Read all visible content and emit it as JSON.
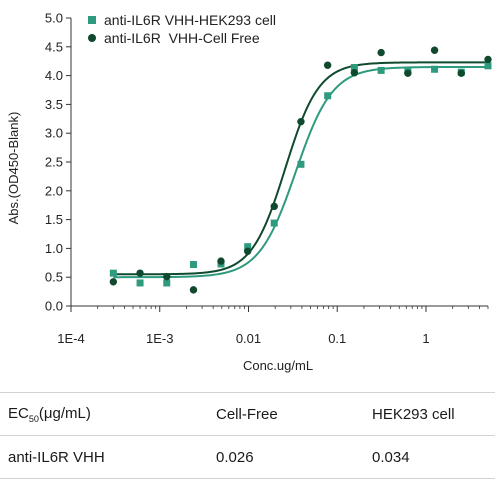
{
  "chart_data": {
    "type": "scatter",
    "xlabel": "Conc.ug/mL",
    "ylabel": "Abs.(OD450-Blank)",
    "x_scale": "log",
    "xlim": [
      0.0001,
      5
    ],
    "ylim": [
      0,
      5.0
    ],
    "x_ticks": [
      0.0001,
      0.001,
      0.01,
      0.1,
      1
    ],
    "x_tick_labels": [
      "1E-4",
      "1E-3",
      "0.01",
      "0.1",
      "1"
    ],
    "y_ticks": [
      0,
      0.5,
      1,
      1.5,
      2,
      2.5,
      3,
      3.5,
      4,
      4.5,
      5
    ],
    "y_tick_labels": [
      "0.0",
      "0.5",
      "1.0",
      "1.5",
      "2.0",
      "2.5",
      "3.0",
      "3.5",
      "4.0",
      "4.5",
      "5.0"
    ],
    "grid": false,
    "legend_position": "top-left",
    "series": [
      {
        "name": "anti-IL6R VHH-HEK293 cell",
        "marker": "square",
        "color": "#2e9a7e",
        "x": [
          0.0003,
          0.0006,
          0.0012,
          0.0024,
          0.0049,
          0.0098,
          0.0195,
          0.039,
          0.078,
          0.156,
          0.3125,
          0.625,
          1.25,
          2.5,
          5
        ],
        "y": [
          0.57,
          0.4,
          0.4,
          0.72,
          0.73,
          1.03,
          1.44,
          2.46,
          3.65,
          4.14,
          4.09,
          4.08,
          4.11,
          4.06,
          4.17
        ],
        "fit": {
          "bottom": 0.5,
          "top": 4.15,
          "ec50": 0.034,
          "hill": 2.1
        }
      },
      {
        "name": "anti-IL6R  VHH-Cell Free",
        "marker": "circle",
        "color": "#0f4a2e",
        "x": [
          0.0003,
          0.0006,
          0.0012,
          0.0024,
          0.0049,
          0.0098,
          0.0195,
          0.039,
          0.078,
          0.156,
          0.3125,
          0.625,
          1.25,
          2.5,
          5
        ],
        "y": [
          0.42,
          0.57,
          0.51,
          0.28,
          0.78,
          0.95,
          1.73,
          3.2,
          4.18,
          4.05,
          4.4,
          4.04,
          4.44,
          4.04,
          4.28
        ],
        "fit": {
          "bottom": 0.55,
          "top": 4.23,
          "ec50": 0.026,
          "hill": 2.3
        }
      }
    ]
  },
  "table": {
    "header": {
      "ec_prefix": "EC",
      "ec_sub": "50",
      "ec_unit": "(μg/mL)",
      "col2": "Cell-Free",
      "col3": "HEK293 cell"
    },
    "rows": [
      {
        "name": "anti-IL6R VHH",
        "cell_free": "0.026",
        "hek293": "0.034"
      }
    ]
  }
}
